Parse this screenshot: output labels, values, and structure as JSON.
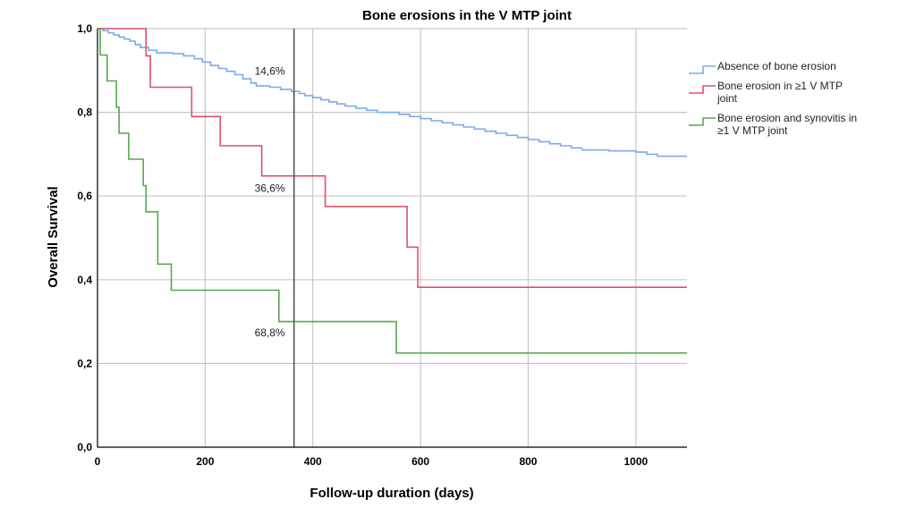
{
  "chart_data": {
    "type": "line",
    "step": true,
    "title": "Bone erosions in the V MTP joint",
    "xlabel": "Follow-up duration (days)",
    "ylabel": "Overall Survival",
    "xlim": [
      0,
      1095
    ],
    "ylim": [
      0,
      1
    ],
    "x_ticks": [
      {
        "value": 0,
        "label": "0"
      },
      {
        "value": 200,
        "label": "200"
      },
      {
        "value": 400,
        "label": "400"
      },
      {
        "value": 600,
        "label": "600"
      },
      {
        "value": 800,
        "label": "800"
      },
      {
        "value": 1000,
        "label": "1000"
      }
    ],
    "y_ticks": [
      {
        "value": 0,
        "label": "0,0"
      },
      {
        "value": 0.2,
        "label": "0,2"
      },
      {
        "value": 0.4,
        "label": "0,4"
      },
      {
        "value": 0.6,
        "label": "0,6"
      },
      {
        "value": 0.8,
        "label": "0,8"
      },
      {
        "value": 1.0,
        "label": "1,0"
      }
    ],
    "grid": true,
    "legend_position": "right",
    "reference_line_x": 365,
    "annotations": [
      {
        "label": "14,6%",
        "x": 320,
        "y": 0.89
      },
      {
        "label": "36,6%",
        "x": 320,
        "y": 0.61
      },
      {
        "label": "68,8%",
        "x": 320,
        "y": 0.265
      }
    ],
    "series": [
      {
        "name": "Absence of bone erosion",
        "color": "#7aaaf0",
        "points": [
          [
            0,
            1.0
          ],
          [
            10,
            0.995
          ],
          [
            20,
            0.99
          ],
          [
            30,
            0.985
          ],
          [
            40,
            0.98
          ],
          [
            50,
            0.975
          ],
          [
            60,
            0.97
          ],
          [
            70,
            0.962
          ],
          [
            80,
            0.955
          ],
          [
            95,
            0.948
          ],
          [
            110,
            0.942
          ],
          [
            140,
            0.94
          ],
          [
            160,
            0.935
          ],
          [
            180,
            0.928
          ],
          [
            195,
            0.92
          ],
          [
            210,
            0.912
          ],
          [
            225,
            0.905
          ],
          [
            240,
            0.898
          ],
          [
            255,
            0.89
          ],
          [
            270,
            0.88
          ],
          [
            285,
            0.87
          ],
          [
            295,
            0.863
          ],
          [
            320,
            0.86
          ],
          [
            340,
            0.855
          ],
          [
            360,
            0.85
          ],
          [
            375,
            0.845
          ],
          [
            385,
            0.84
          ],
          [
            400,
            0.835
          ],
          [
            415,
            0.83
          ],
          [
            430,
            0.825
          ],
          [
            445,
            0.82
          ],
          [
            460,
            0.815
          ],
          [
            480,
            0.81
          ],
          [
            500,
            0.805
          ],
          [
            520,
            0.8
          ],
          [
            550,
            0.8
          ],
          [
            560,
            0.795
          ],
          [
            580,
            0.79
          ],
          [
            600,
            0.785
          ],
          [
            620,
            0.78
          ],
          [
            640,
            0.775
          ],
          [
            660,
            0.77
          ],
          [
            680,
            0.765
          ],
          [
            700,
            0.76
          ],
          [
            720,
            0.755
          ],
          [
            740,
            0.75
          ],
          [
            760,
            0.745
          ],
          [
            780,
            0.74
          ],
          [
            800,
            0.735
          ],
          [
            820,
            0.73
          ],
          [
            840,
            0.725
          ],
          [
            860,
            0.72
          ],
          [
            880,
            0.715
          ],
          [
            900,
            0.71
          ],
          [
            950,
            0.708
          ],
          [
            1000,
            0.705
          ],
          [
            1020,
            0.7
          ],
          [
            1040,
            0.695
          ],
          [
            1095,
            0.695
          ]
        ]
      },
      {
        "name": "Bone erosion in ≥1 V MTP joint",
        "color": "#e0506a",
        "points": [
          [
            0,
            1.0
          ],
          [
            90,
            0.935
          ],
          [
            98,
            0.86
          ],
          [
            175,
            0.79
          ],
          [
            228,
            0.72
          ],
          [
            305,
            0.648
          ],
          [
            423,
            0.575
          ],
          [
            575,
            0.478
          ],
          [
            595,
            0.382
          ],
          [
            1095,
            0.382
          ]
        ]
      },
      {
        "name": "Bone erosion and synovitis in ≥1 V MTP joint",
        "color": "#55a84e",
        "points": [
          [
            0,
            1.0
          ],
          [
            5,
            0.937
          ],
          [
            18,
            0.875
          ],
          [
            35,
            0.812
          ],
          [
            40,
            0.75
          ],
          [
            58,
            0.688
          ],
          [
            85,
            0.625
          ],
          [
            90,
            0.5625
          ],
          [
            112,
            0.4375
          ],
          [
            137,
            0.375
          ],
          [
            337,
            0.3
          ],
          [
            555,
            0.225
          ],
          [
            1095,
            0.225
          ]
        ]
      }
    ]
  }
}
